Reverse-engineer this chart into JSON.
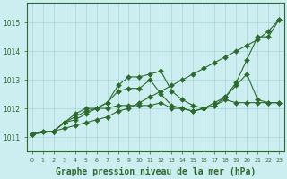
{
  "background_color": "#cceef0",
  "grid_color": "#aad4d6",
  "line_color": "#2d6a2d",
  "xlabel": "Graphe pression niveau de la mer (hPa)",
  "xlabel_fontsize": 7,
  "ylabel_ticks": [
    1011,
    1012,
    1013,
    1014,
    1015
  ],
  "xlim": [
    -0.5,
    23.5
  ],
  "ylim": [
    1010.5,
    1015.7
  ],
  "series": [
    {
      "x": [
        0,
        1,
        2,
        3,
        4,
        5,
        6,
        7,
        8,
        9,
        10,
        11,
        12,
        13,
        14,
        15,
        16,
        17,
        18,
        19,
        20,
        21,
        22,
        23
      ],
      "y": [
        1011.1,
        1011.2,
        1011.2,
        1011.3,
        1011.4,
        1011.5,
        1011.6,
        1011.7,
        1011.9,
        1012.0,
        1012.2,
        1012.4,
        1012.6,
        1012.8,
        1013.0,
        1013.2,
        1013.4,
        1013.6,
        1013.8,
        1014.0,
        1014.2,
        1014.4,
        1014.7,
        1015.1
      ]
    },
    {
      "x": [
        0,
        1,
        2,
        3,
        4,
        5,
        6,
        7,
        8,
        9,
        10,
        11,
        12,
        13,
        14,
        15,
        16,
        17,
        18,
        19,
        20,
        21,
        22,
        23
      ],
      "y": [
        1011.1,
        1011.2,
        1011.2,
        1011.5,
        1011.8,
        1012.0,
        1012.0,
        1012.2,
        1012.8,
        1013.1,
        1013.1,
        1013.2,
        1013.3,
        1012.6,
        1012.3,
        1012.1,
        1012.0,
        1012.1,
        1012.4,
        1012.9,
        1013.7,
        1014.5,
        1014.5,
        1015.1
      ]
    },
    {
      "x": [
        0,
        2,
        3,
        4,
        5,
        6,
        7,
        8,
        9,
        10,
        11,
        12,
        13,
        14,
        15,
        16,
        17,
        18,
        19,
        20,
        21,
        22,
        23
      ],
      "y": [
        1011.1,
        1011.2,
        1011.5,
        1011.7,
        1011.9,
        1012.0,
        1012.2,
        1012.6,
        1012.7,
        1012.7,
        1013.0,
        1012.5,
        1012.1,
        1012.0,
        1011.9,
        1012.0,
        1012.2,
        1012.4,
        1012.8,
        1013.2,
        1012.3,
        1012.2,
        1012.2
      ]
    },
    {
      "x": [
        0,
        2,
        3,
        4,
        5,
        6,
        7,
        8,
        9,
        10,
        11,
        12,
        13,
        14,
        15,
        16,
        17,
        18,
        19,
        20,
        21,
        22,
        23
      ],
      "y": [
        1011.1,
        1011.2,
        1011.5,
        1011.6,
        1011.8,
        1012.0,
        1012.0,
        1012.1,
        1012.1,
        1012.1,
        1012.1,
        1012.2,
        1012.0,
        1012.0,
        1011.9,
        1012.0,
        1012.1,
        1012.3,
        1012.2,
        1012.2,
        1012.2,
        1012.2,
        1012.2
      ]
    }
  ],
  "markersize": 3.0
}
